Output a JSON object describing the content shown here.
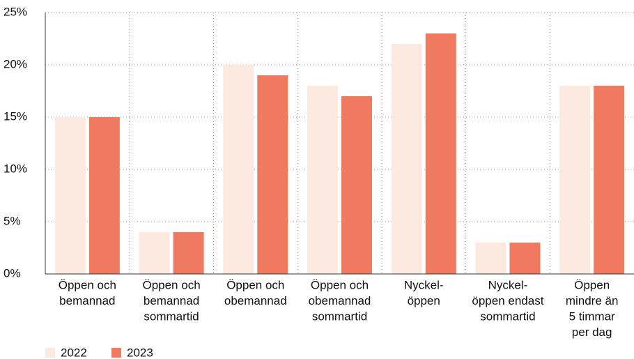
{
  "chart_data": {
    "type": "bar",
    "categories": [
      [
        "Öppen och",
        "bemannad"
      ],
      [
        "Öppen och",
        "bemannad",
        "sommartid"
      ],
      [
        "Öppen och",
        "obemannad"
      ],
      [
        "Öppen och",
        "obemannad",
        "sommartid"
      ],
      [
        "Nyckel-",
        "öppen"
      ],
      [
        "Nyckel-",
        "öppen endast",
        "sommartid"
      ],
      [
        "Öppen",
        "mindre än",
        "5 timmar",
        "per dag"
      ]
    ],
    "series": [
      {
        "name": "2022",
        "color": "#fce9df",
        "values": [
          15,
          4,
          20,
          18,
          22,
          3,
          18
        ]
      },
      {
        "name": "2023",
        "color": "#f07a60",
        "values": [
          15,
          4,
          19,
          17,
          23,
          3,
          18
        ]
      }
    ],
    "ylim": [
      0,
      25
    ],
    "yticks": [
      {
        "value": 0,
        "label": "0%"
      },
      {
        "value": 5,
        "label": "5%"
      },
      {
        "value": 10,
        "label": "10%"
      },
      {
        "value": 15,
        "label": "15%"
      },
      {
        "value": 20,
        "label": "20%"
      },
      {
        "value": 25,
        "label": "25%"
      }
    ],
    "grid": true,
    "legend": "bottom-left"
  }
}
